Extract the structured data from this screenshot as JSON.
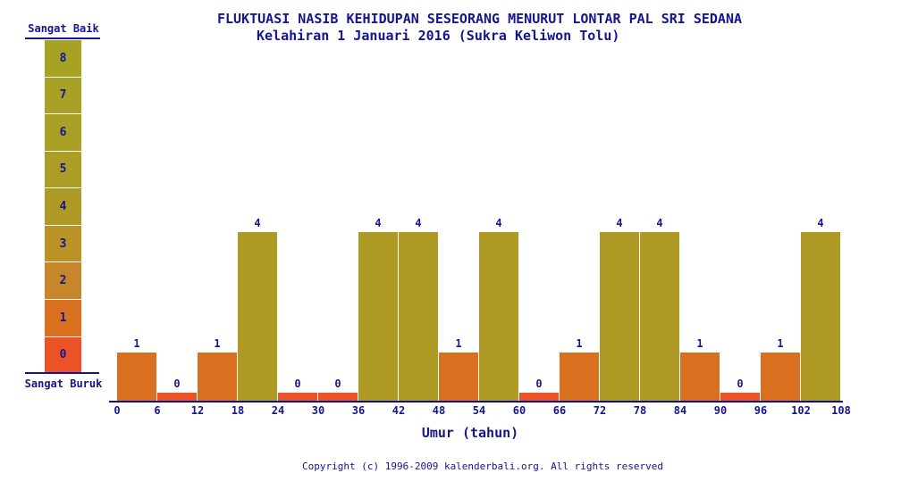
{
  "footer": {
    "copyright": "Copyright (c) 1996-2009 kalenderbali.org. All rights reserved"
  },
  "legend": {
    "top_label": "Sangat Baik",
    "bottom_label": "Sangat Buruk",
    "scale": [
      8,
      7,
      6,
      5,
      4,
      3,
      2,
      1,
      0
    ]
  },
  "colors": {
    "background": "#ffffff",
    "text_navy": "#15158f",
    "axis_line": "#10108a",
    "value_scale": [
      "#eb5226",
      "#d8701f",
      "#c8862a",
      "#bb9226",
      "#ae9a25",
      "#ab9d25",
      "#a9a025",
      "#a8a125",
      "#a6a324"
    ]
  },
  "chart_data": {
    "type": "bar",
    "title": "FLUKTUASI NASIB KEHIDUPAN SESEORANG MENURUT LONTAR PAL SRI SEDANA",
    "subtitle": "Kelahiran 1 Januari 2016 (Sukra Keliwon Tolu)",
    "xlabel": "Umur (tahun)",
    "ylabel": "",
    "ylim": [
      0,
      8
    ],
    "grid": false,
    "legend_position": "left",
    "x_tick_labels": [
      "0",
      "6",
      "12",
      "18",
      "24",
      "30",
      "36",
      "42",
      "48",
      "54",
      "60",
      "66",
      "72",
      "78",
      "84",
      "90",
      "96",
      "102",
      "108"
    ],
    "categories": [
      "0-6",
      "6-12",
      "12-18",
      "18-24",
      "24-30",
      "30-36",
      "36-42",
      "42-48",
      "48-54",
      "54-60",
      "60-66",
      "66-72",
      "72-78",
      "78-84",
      "84-90",
      "90-96",
      "96-102",
      "102-108"
    ],
    "values": [
      1,
      0,
      1,
      4,
      0,
      0,
      4,
      4,
      1,
      4,
      0,
      1,
      4,
      4,
      1,
      0,
      1,
      4
    ],
    "value_labels_shown": true,
    "scale_meaning": {
      "8": "Sangat Baik",
      "0": "Sangat Buruk"
    }
  }
}
